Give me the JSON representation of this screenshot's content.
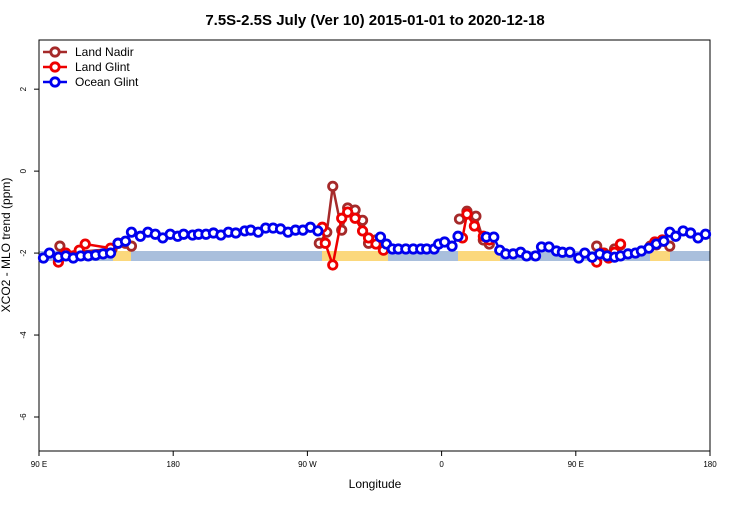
{
  "chart_data": {
    "type": "line",
    "title": "7.5S-2.5S July (Ver 10)   2015-01-01 to 2020-12-18",
    "xlabel": "Longitude",
    "ylabel": "XCO2 - MLO trend (ppm)",
    "xlim": [
      90,
      540
    ],
    "ylim": [
      -6.83,
      3.2
    ],
    "xticks": [
      {
        "value": 90,
        "label": "90 E"
      },
      180,
      {
        "value": 270,
        "label": "90 W"
      },
      {
        "value": 360,
        "label": "0"
      },
      {
        "value": 450,
        "label": "90 E"
      },
      {
        "value": 540,
        "label": "180"
      }
    ],
    "yticks": [
      -6,
      -4,
      -2,
      0,
      2
    ],
    "legend": "top-left",
    "series": [
      {
        "name": "Land Nadir",
        "color": "#a52a2a",
        "x": [
          104,
          107,
          139,
          148,
          152,
          null,
          278,
          283,
          287,
          293,
          297,
          302,
          307,
          311,
          316,
          321,
          null,
          372,
          377,
          383,
          388,
          392,
          null,
          464,
          469,
          476,
          480,
          null,
          500,
          504,
          513
        ],
        "values": [
          -1.83,
          -2.0,
          -1.9,
          -1.76,
          -1.83,
          null,
          -1.76,
          -1.49,
          -0.37,
          -1.44,
          -0.9,
          -0.95,
          -1.2,
          -1.76,
          -1.68,
          -1.9,
          null,
          -1.17,
          -0.98,
          -1.1,
          -1.68,
          -1.78,
          null,
          -1.83,
          -2.0,
          -1.9,
          -1.8,
          null,
          -1.83,
          -1.8,
          -1.83
        ]
      },
      {
        "name": "Land Glint",
        "color": "#ee0000",
        "x": [
          103,
          108,
          117,
          121,
          138,
          143,
          null,
          280,
          282,
          287,
          293,
          297,
          302,
          307,
          311,
          316,
          321,
          null,
          374,
          377,
          382,
          388,
          392,
          null,
          464,
          468,
          472,
          476,
          480,
          null,
          503,
          508
        ],
        "values": [
          -2.22,
          -2.0,
          -1.93,
          -1.78,
          -1.88,
          -1.76,
          null,
          -1.37,
          -1.76,
          -2.29,
          -1.15,
          -1.0,
          -1.15,
          -1.46,
          -1.63,
          -1.78,
          -1.93,
          null,
          -1.63,
          -1.05,
          -1.34,
          -1.59,
          -1.68,
          null,
          -2.22,
          -2.0,
          -2.12,
          -1.98,
          -1.78,
          null,
          -1.73,
          -1.68
        ]
      },
      {
        "name": "Ocean Glint",
        "color": "#0000ee",
        "x": [
          93,
          97,
          103,
          108,
          113,
          118,
          123,
          128,
          133,
          138,
          143,
          148,
          152,
          158,
          163,
          168,
          173,
          178,
          183,
          187,
          193,
          197,
          202,
          207,
          212,
          217,
          222,
          228,
          232,
          237,
          242,
          247,
          252,
          257,
          262,
          267,
          272,
          277,
          null,
          319,
          323,
          327,
          331,
          336,
          341,
          346,
          350,
          355,
          358,
          362,
          367,
          371,
          null,
          390,
          395,
          399,
          403,
          408,
          413,
          417,
          423,
          427,
          432,
          437,
          441,
          446,
          452,
          456,
          461,
          466,
          471,
          476,
          480,
          485,
          490,
          494,
          499,
          504,
          509,
          513,
          517,
          522,
          527,
          532,
          537
        ],
        "values": [
          -2.12,
          -2.0,
          -2.1,
          -2.07,
          -2.12,
          -2.07,
          -2.07,
          -2.05,
          -2.02,
          -2.0,
          -1.76,
          -1.71,
          -1.49,
          -1.59,
          -1.49,
          -1.54,
          -1.63,
          -1.54,
          -1.59,
          -1.54,
          -1.56,
          -1.54,
          -1.54,
          -1.51,
          -1.56,
          -1.49,
          -1.51,
          -1.46,
          -1.44,
          -1.49,
          -1.39,
          -1.39,
          -1.41,
          -1.49,
          -1.44,
          -1.44,
          -1.37,
          -1.46,
          null,
          -1.61,
          -1.78,
          -1.9,
          -1.9,
          -1.9,
          -1.9,
          -1.9,
          -1.9,
          -1.9,
          -1.78,
          -1.73,
          -1.83,
          -1.59,
          null,
          -1.61,
          -1.61,
          -1.93,
          -2.02,
          -2.02,
          -1.98,
          -2.07,
          -2.07,
          -1.85,
          -1.85,
          -1.95,
          -1.98,
          -1.98,
          -2.12,
          -2.0,
          -2.1,
          -2.02,
          -2.07,
          -2.1,
          -2.07,
          -2.02,
          -2.0,
          -1.95,
          -1.88,
          -1.78,
          -1.71,
          -1.49,
          -1.59,
          -1.46,
          -1.51,
          -1.63,
          -1.54
        ]
      }
    ]
  }
}
